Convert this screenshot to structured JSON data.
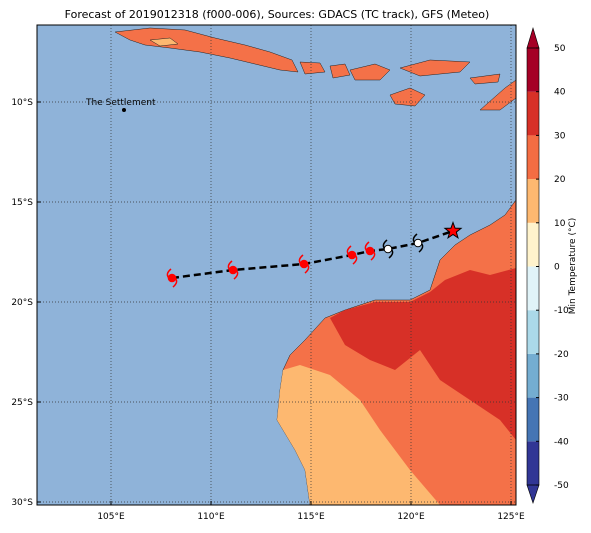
{
  "chart_data": {
    "type": "map",
    "title": "Forecast of 2019012318 (f000-006), Sources: GDACS (TC track), GFS (Meteo)",
    "xlim": [
      101.3,
      125.25
    ],
    "ylim": [
      -30.15,
      -6.15
    ],
    "xticks": [
      {
        "value": 105,
        "label": "105°E"
      },
      {
        "value": 110,
        "label": "110°E"
      },
      {
        "value": 115,
        "label": "115°E"
      },
      {
        "value": 120,
        "label": "120°E"
      },
      {
        "value": 125,
        "label": "125°E"
      }
    ],
    "yticks": [
      {
        "value": -10,
        "label": "10°S"
      },
      {
        "value": -15,
        "label": "15°S"
      },
      {
        "value": -20,
        "label": "20°S"
      },
      {
        "value": -25,
        "label": "25°S"
      },
      {
        "value": -30,
        "label": "30°S"
      }
    ],
    "grid": true,
    "place": {
      "name": "The Settlement",
      "lon": 105.65,
      "lat": -10.4
    },
    "track": {
      "lon": [
        108.05,
        111.1,
        114.65,
        117.05,
        117.95,
        118.85,
        120.35,
        122.1
      ],
      "lat": [
        -18.8,
        -18.4,
        -18.1,
        -17.65,
        -17.45,
        -17.35,
        -17.05,
        -16.45
      ],
      "colors": [
        "#ff0000",
        "#ff0000",
        "#ff0000",
        "#ff0000",
        "#ff0000",
        "#ffffff",
        "#ffffff",
        "#ff0000"
      ],
      "markers": [
        "storm",
        "storm",
        "storm",
        "storm",
        "storm",
        "storm",
        "storm",
        "star"
      ]
    },
    "colorbar": {
      "label": "Min Temperature (°C)",
      "ticks": [
        -50,
        -40,
        -30,
        -20,
        -10,
        0,
        10,
        20,
        30,
        40,
        50
      ],
      "colors": [
        "#313695",
        "#4575b4",
        "#74add1",
        "#abd9e9",
        "#e0f3f8",
        "#fff3cc",
        "#fdb870",
        "#f46d43",
        "#d73027",
        "#a50026"
      ]
    }
  }
}
